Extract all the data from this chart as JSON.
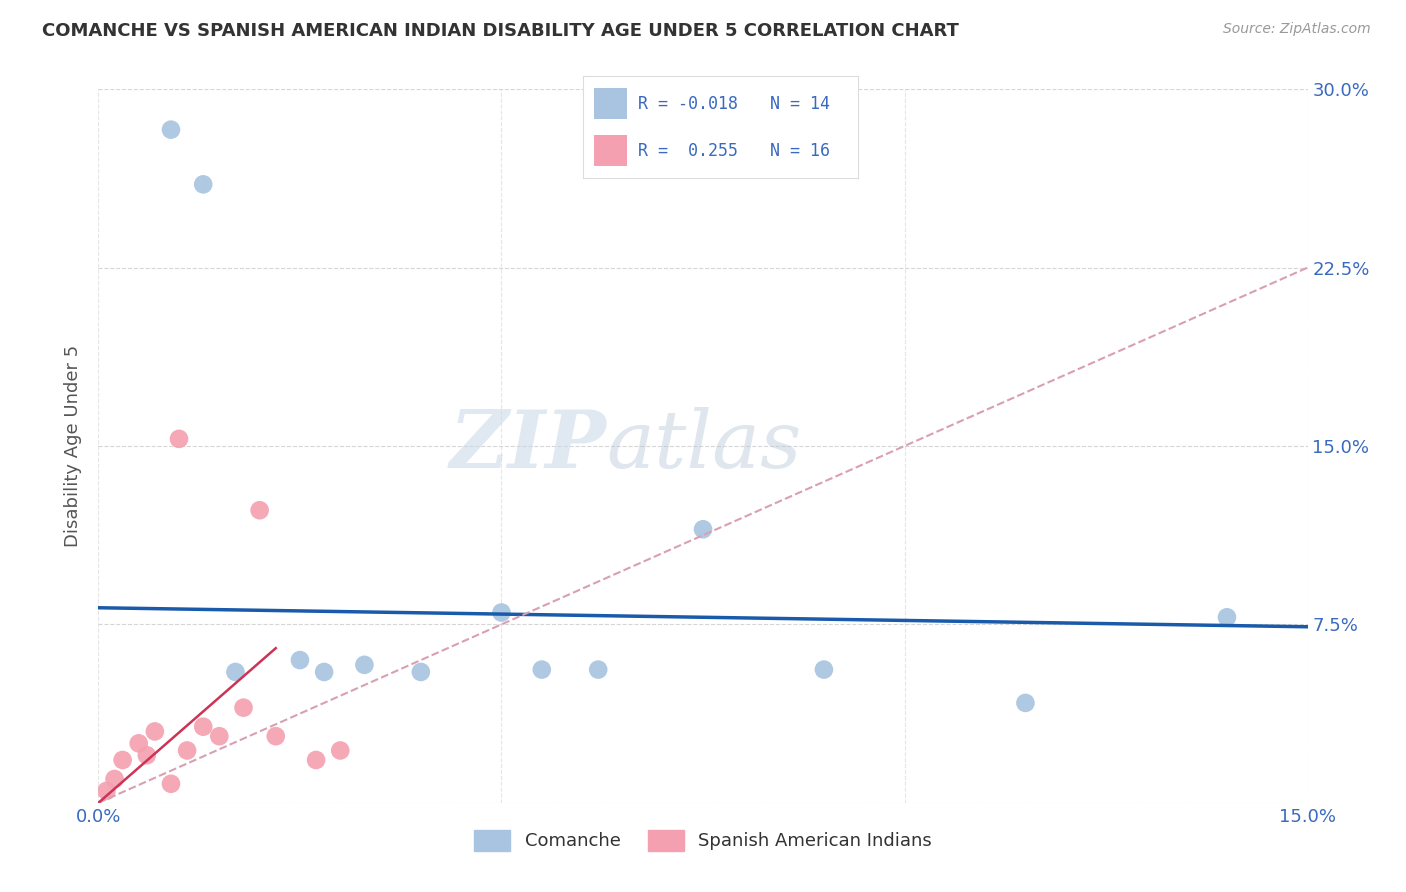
{
  "title": "COMANCHE VS SPANISH AMERICAN INDIAN DISABILITY AGE UNDER 5 CORRELATION CHART",
  "source": "Source: ZipAtlas.com",
  "ylabel": "Disability Age Under 5",
  "xlim": [
    0,
    0.15
  ],
  "ylim": [
    0,
    0.3
  ],
  "watermark_text": "ZIPatlas",
  "legend_label1": "Comanche",
  "legend_label2": "Spanish American Indians",
  "comanche_color": "#a8c4e0",
  "spanish_color": "#f4a0b0",
  "trendline_comanche_color": "#1a5aaa",
  "trendline_spanish_dashed_color": "#d8a0b0",
  "trendline_spanish_solid_color": "#cc3355",
  "grid_color": "#cccccc",
  "text_color": "#3a6abf",
  "comanche_x": [
    0.009,
    0.013,
    0.017,
    0.025,
    0.028,
    0.033,
    0.04,
    0.05,
    0.055,
    0.062,
    0.075,
    0.09,
    0.115,
    0.14
  ],
  "comanche_y": [
    0.283,
    0.26,
    0.055,
    0.06,
    0.055,
    0.058,
    0.055,
    0.08,
    0.056,
    0.056,
    0.115,
    0.056,
    0.042,
    0.078
  ],
  "spanish_x": [
    0.001,
    0.002,
    0.003,
    0.005,
    0.006,
    0.007,
    0.009,
    0.01,
    0.011,
    0.013,
    0.015,
    0.018,
    0.02,
    0.022,
    0.027,
    0.03
  ],
  "spanish_y": [
    0.005,
    0.01,
    0.018,
    0.025,
    0.02,
    0.03,
    0.008,
    0.153,
    0.022,
    0.032,
    0.028,
    0.04,
    0.123,
    0.028,
    0.018,
    0.022
  ],
  "trend_comanche_x0": 0.0,
  "trend_comanche_y0": 0.082,
  "trend_comanche_x1": 0.15,
  "trend_comanche_y1": 0.074,
  "trend_spanish_dashed_x0": 0.0,
  "trend_spanish_dashed_y0": 0.0,
  "trend_spanish_dashed_x1": 0.15,
  "trend_spanish_dashed_y1": 0.225,
  "trend_spanish_solid_x0": 0.0,
  "trend_spanish_solid_y0": 0.0,
  "trend_spanish_solid_x1": 0.022,
  "trend_spanish_solid_y1": 0.065,
  "dot_size": 180
}
